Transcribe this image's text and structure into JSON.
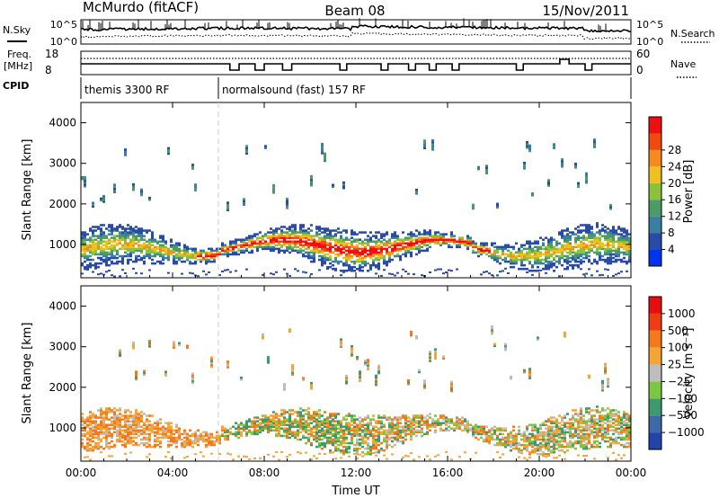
{
  "header": {
    "station": "McMurdo (fitACF)",
    "beam": "Beam 08",
    "date": "15/Nov/2011"
  },
  "upper_panels": {
    "nsky_label": "N.Sky",
    "nsearch_label": "N.Search",
    "nsky_ticks": [
      "10^5",
      "10^0"
    ],
    "nsearch_ticks": [
      "10^5",
      "10^0"
    ],
    "freq_label": "Freq.",
    "freq_unit": "[MHz]",
    "freq_ticks": [
      "18",
      "8"
    ],
    "nave_label": "Nave",
    "nave_ticks": [
      "60",
      "0"
    ],
    "cpid_label": "CPID",
    "cpid_segments": [
      {
        "label": "themis 3300 RF",
        "start_hour": 0,
        "end_hour": 6.0
      },
      {
        "label": "normalsound (fast) 157 RF",
        "start_hour": 6.0,
        "end_hour": 24
      }
    ]
  },
  "chart_data": [
    {
      "type": "heatmap",
      "ylabel": "Slant Range [km]",
      "xlabel": "Time UT",
      "x_range_hours": [
        0,
        24
      ],
      "ylim": [
        180,
        4500
      ],
      "y_ticks": [
        1000,
        2000,
        3000,
        4000
      ],
      "x_ticks": [
        "00:00",
        "04:00",
        "08:00",
        "12:00",
        "16:00",
        "20:00",
        "00:00"
      ],
      "colorbar": {
        "label": "Power [dB]",
        "tick_labels": [
          "4",
          "8",
          "12",
          "16",
          "20",
          "24",
          "28"
        ],
        "levels": [
          0,
          4,
          8,
          12,
          16,
          20,
          24,
          28,
          32
        ],
        "colors": [
          "#0033ee",
          "#2a4aa8",
          "#3a7fa0",
          "#4e9a66",
          "#8cc13c",
          "#f0c020",
          "#f58b1f",
          "#f04a10",
          "#ee1010"
        ]
      }
    },
    {
      "type": "heatmap",
      "ylabel": "Slant Range [km]",
      "xlabel": "Time UT",
      "x_range_hours": [
        0,
        24
      ],
      "ylim": [
        180,
        4500
      ],
      "y_ticks": [
        1000,
        2000,
        3000,
        4000
      ],
      "x_ticks": [
        "00:00",
        "04:00",
        "08:00",
        "12:00",
        "16:00",
        "20:00",
        "00:00"
      ],
      "colorbar": {
        "label": "Velocity [m s⁻¹]",
        "tick_labels": [
          "1000",
          "500",
          "100",
          "25",
          "−25",
          "−100",
          "−500",
          "−1000"
        ],
        "colors": [
          "#2244aa",
          "#3f68a8",
          "#3d9a6e",
          "#7cc640",
          "#bdbdbd",
          "#f6a435",
          "#f27a1c",
          "#ee3d12",
          "#e30e0e"
        ]
      }
    }
  ]
}
